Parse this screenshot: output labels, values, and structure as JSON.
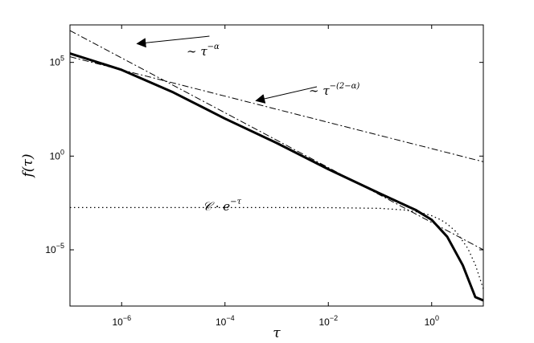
{
  "chart_data": {
    "type": "line",
    "x_scale": "log",
    "y_scale": "log",
    "xlim": [
      1e-07,
      10
    ],
    "ylim": [
      1e-08,
      10000000.0
    ],
    "grid": false,
    "legend": "none",
    "xlabel": "τ",
    "ylabel": "f(τ)",
    "x_ticks": [
      {
        "value": 1e-06,
        "base": "10",
        "exp": "−6"
      },
      {
        "value": 0.0001,
        "base": "10",
        "exp": "−4"
      },
      {
        "value": 0.01,
        "base": "10",
        "exp": "−2"
      },
      {
        "value": 1,
        "base": "10",
        "exp": "0"
      }
    ],
    "y_ticks": [
      {
        "value": 100000.0,
        "base": "10",
        "exp": "5"
      },
      {
        "value": 1,
        "base": "10",
        "exp": "0"
      },
      {
        "value": 1e-05,
        "base": "10",
        "exp": "−5"
      }
    ],
    "series": [
      {
        "style": "solid-thick",
        "x": [
          1e-07,
          1e-06,
          1e-05,
          0.0001,
          0.001,
          0.01,
          0.1,
          0.5,
          1,
          2,
          4,
          7,
          10
        ],
        "y": [
          300000.0,
          40000.0,
          2500.0,
          100.0,
          5,
          0.2,
          0.01,
          0.0013,
          0.0004,
          5e-05,
          1.5e-06,
          3e-08,
          2e-08
        ]
      },
      {
        "style": "dashed",
        "x": [
          1e-07,
          1e-06,
          1e-05,
          0.0001,
          0.001,
          0.01,
          0.1,
          0.5,
          1
        ],
        "y": [
          320000.0,
          43000.0,
          2600.0,
          105.0,
          5.2,
          0.21,
          0.011,
          0.0014,
          0.00043
        ]
      },
      {
        "style": "dashdot",
        "x": [
          1e-07,
          10
        ],
        "y": [
          5000000.0,
          1e-05
        ]
      },
      {
        "style": "dashdot",
        "x": [
          1e-07,
          10
        ],
        "y": [
          200000.0,
          0.5
        ]
      },
      {
        "style": "dotted",
        "x": [
          1e-07,
          0.001,
          0.01,
          0.1,
          0.3,
          0.6,
          1,
          1.5,
          2,
          3,
          5,
          7,
          10
        ],
        "y": [
          0.0018,
          0.0018,
          0.00178,
          0.00163,
          0.00133,
          0.00099,
          0.00066,
          0.0004,
          0.00024,
          9e-05,
          1.2e-05,
          1.6e-06,
          8.2e-08
        ]
      }
    ],
    "annotations": [
      {
        "id": "alpha",
        "base": "∼ τ",
        "exp": "−α",
        "arrow_from": [
          5e-05,
          2500000.0
        ],
        "arrow_to": [
          2e-06,
          1000000.0
        ]
      },
      {
        "id": "two-minus-alpha",
        "base": "∼ τ",
        "exp": "−(2−α)",
        "arrow_from": [
          0.006,
          5000.0
        ],
        "arrow_to": [
          0.0004,
          900.0
        ]
      },
      {
        "id": "exp",
        "base": "𝒞 · e",
        "exp": "−τ"
      }
    ]
  }
}
